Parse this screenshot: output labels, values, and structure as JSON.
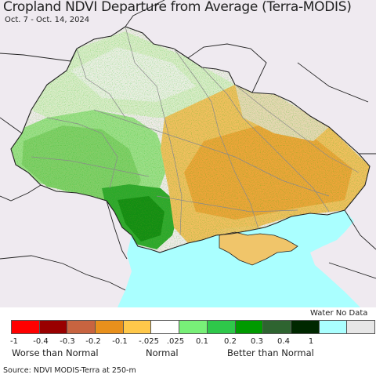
{
  "title": "Cropland NDVI Departure from Average (Terra-MODIS)",
  "subtitle": "Oct. 7 - Oct. 14, 2024",
  "legend": {
    "water_no_data_label": "Water No Data",
    "swatches": [
      {
        "color": "#ff0000"
      },
      {
        "color": "#990000"
      },
      {
        "color": "#c86440"
      },
      {
        "color": "#e8901c"
      },
      {
        "color": "#ffc84a"
      },
      {
        "color": "#ffffff"
      },
      {
        "color": "#78f078"
      },
      {
        "color": "#2ec84a"
      },
      {
        "color": "#009a00"
      },
      {
        "color": "#2e6430"
      },
      {
        "color": "#002800"
      },
      {
        "color": "#aaffff"
      },
      {
        "color": "#e6e6e6"
      }
    ],
    "ticks": [
      "-1",
      "-0.4",
      "-0.3",
      "-0.2",
      "-0.1",
      "-.025",
      ".025",
      "0.1",
      "0.2",
      "0.3",
      "0.4",
      "1"
    ],
    "captions": {
      "worse": "Worse than Normal",
      "normal": "Normal",
      "better": "Better than Normal"
    }
  },
  "source": "Source: NDVI MODIS-Terra at 250-m",
  "colors": {
    "background_land": "#efeaf0",
    "sea": "#aaffff",
    "border": "#222222",
    "oblast_border": "#8a8a8a"
  }
}
